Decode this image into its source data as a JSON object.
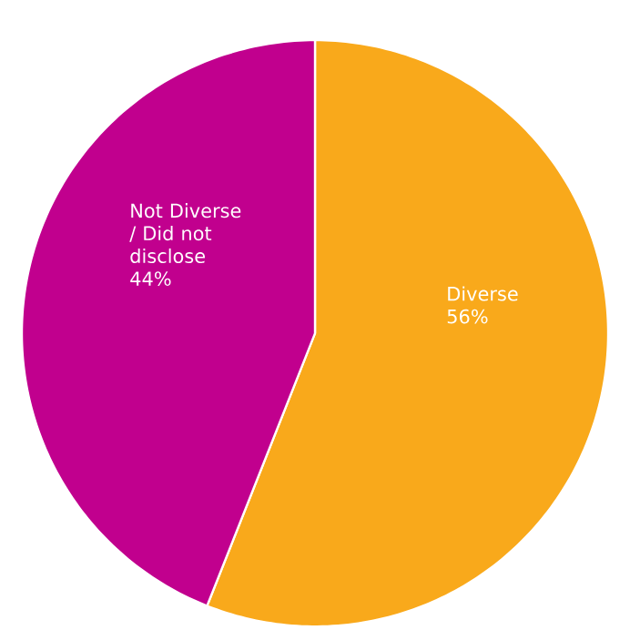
{
  "chart_data": {
    "type": "pie",
    "categories": [
      "Diverse",
      "Not Diverse / Did not disclose"
    ],
    "values": [
      56,
      44
    ],
    "colors": [
      "#f9a91b",
      "#c1008e"
    ],
    "value_labels": [
      "56%",
      "44%"
    ]
  }
}
